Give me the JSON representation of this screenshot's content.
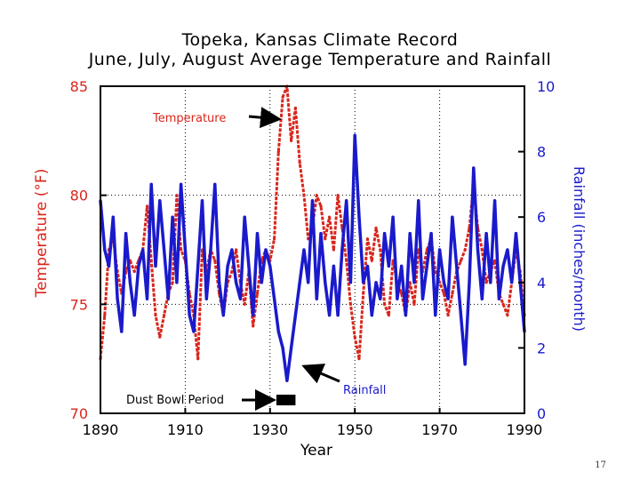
{
  "slide": {
    "number": "17"
  },
  "chart_data": {
    "type": "line",
    "title": "Topeka, Kansas Climate Record",
    "subtitle": "June, July, August Average Temperature and Rainfall",
    "xlabel": "Year",
    "ylabel_left": "Temperature (°F)",
    "ylabel_right": "Rainfall (inches/month)",
    "xlim": [
      1890,
      1990
    ],
    "ylim_left": [
      70,
      85
    ],
    "ylim_right": [
      0,
      10
    ],
    "x_ticks": [
      "1890",
      "1910",
      "1930",
      "1950",
      "1970",
      "1990"
    ],
    "y_ticks_left": [
      "70",
      "75",
      "80",
      "85"
    ],
    "y_ticks_right": [
      "0",
      "2",
      "4",
      "6",
      "8",
      "10"
    ],
    "grid": "vertical dotted lines at 1910, 1930, 1950, 1970 and horizontal dotted lines at 70, 75, 80, 85 °F",
    "colors": {
      "temperature": "#d9261c",
      "rainfall": "#1a1acc",
      "axes": "#000000"
    },
    "annotations": [
      {
        "text": "Temperature",
        "color": "#d9261c",
        "points_to": [
          1932,
          82.2
        ]
      },
      {
        "text": "Rainfall",
        "color": "#1a1acc",
        "points_to": [
          1934,
          1.5
        ]
      },
      {
        "text": "Dust Bowl Period",
        "color": "#000000",
        "span": [
          1930,
          1936
        ]
      }
    ],
    "series": [
      {
        "name": "Temperature",
        "axis": "left",
        "units": "°F",
        "x": [
          1890,
          1891,
          1892,
          1893,
          1894,
          1895,
          1896,
          1897,
          1898,
          1899,
          1900,
          1901,
          1902,
          1903,
          1904,
          1905,
          1906,
          1907,
          1908,
          1909,
          1910,
          1911,
          1912,
          1913,
          1914,
          1915,
          1916,
          1917,
          1918,
          1919,
          1920,
          1921,
          1922,
          1923,
          1924,
          1925,
          1926,
          1927,
          1928,
          1929,
          1930,
          1931,
          1932,
          1933,
          1934,
          1935,
          1936,
          1937,
          1938,
          1939,
          1940,
          1941,
          1942,
          1943,
          1944,
          1945,
          1946,
          1947,
          1948,
          1949,
          1950,
          1951,
          1952,
          1953,
          1954,
          1955,
          1956,
          1957,
          1958,
          1959,
          1960,
          1961,
          1962,
          1963,
          1964,
          1965,
          1966,
          1967,
          1968,
          1969,
          1970,
          1971,
          1972,
          1973,
          1974,
          1975,
          1976,
          1977,
          1978,
          1979,
          1980,
          1981,
          1982,
          1983,
          1984,
          1985,
          1986,
          1987,
          1988,
          1989,
          1990
        ],
        "values": [
          72.5,
          74.5,
          77.5,
          78.0,
          76.5,
          75.5,
          76.5,
          77.0,
          76.5,
          77.0,
          77.5,
          79.5,
          77.0,
          74.5,
          73.5,
          74.5,
          75.5,
          76.0,
          80.0,
          77.5,
          77.0,
          75.5,
          74.5,
          72.5,
          77.5,
          76.5,
          77.5,
          77.0,
          75.5,
          74.5,
          76.0,
          76.5,
          77.5,
          76.0,
          75.0,
          76.5,
          74.0,
          75.5,
          77.0,
          77.5,
          77.0,
          78.0,
          82.0,
          84.5,
          85.0,
          82.5,
          84.0,
          81.5,
          80.0,
          78.0,
          78.5,
          80.0,
          79.5,
          78.0,
          79.0,
          77.5,
          80.0,
          78.5,
          77.0,
          75.0,
          73.5,
          72.5,
          75.5,
          78.0,
          77.0,
          78.5,
          77.5,
          75.0,
          74.5,
          77.0,
          76.0,
          75.5,
          74.5,
          76.0,
          75.0,
          77.5,
          76.5,
          77.5,
          78.0,
          76.5,
          76.0,
          75.5,
          74.5,
          75.5,
          76.5,
          77.0,
          77.5,
          78.5,
          80.5,
          78.5,
          77.5,
          76.0,
          76.5,
          77.0,
          75.5,
          75.0,
          74.5,
          76.0,
          77.5,
          76.5,
          74.5
        ]
      },
      {
        "name": "Rainfall",
        "axis": "right",
        "units": "inches/month",
        "x": [
          1890,
          1891,
          1892,
          1893,
          1894,
          1895,
          1896,
          1897,
          1898,
          1899,
          1900,
          1901,
          1902,
          1903,
          1904,
          1905,
          1906,
          1907,
          1908,
          1909,
          1910,
          1911,
          1912,
          1913,
          1914,
          1915,
          1916,
          1917,
          1918,
          1919,
          1920,
          1921,
          1922,
          1923,
          1924,
          1925,
          1926,
          1927,
          1928,
          1929,
          1930,
          1931,
          1932,
          1933,
          1934,
          1935,
          1936,
          1937,
          1938,
          1939,
          1940,
          1941,
          1942,
          1943,
          1944,
          1945,
          1946,
          1947,
          1948,
          1949,
          1950,
          1951,
          1952,
          1953,
          1954,
          1955,
          1956,
          1957,
          1958,
          1959,
          1960,
          1961,
          1962,
          1963,
          1964,
          1965,
          1966,
          1967,
          1968,
          1969,
          1970,
          1971,
          1972,
          1973,
          1974,
          1975,
          1976,
          1977,
          1978,
          1979,
          1980,
          1981,
          1982,
          1983,
          1984,
          1985,
          1986,
          1987,
          1988,
          1989,
          1990
        ],
        "values": [
          6.5,
          5.0,
          4.5,
          6.0,
          3.5,
          2.5,
          5.5,
          4.0,
          3.0,
          4.5,
          5.0,
          3.5,
          7.0,
          4.5,
          6.5,
          5.0,
          3.5,
          6.0,
          4.0,
          7.0,
          5.0,
          3.0,
          2.5,
          4.5,
          6.5,
          3.5,
          5.0,
          7.0,
          4.0,
          3.0,
          4.5,
          5.0,
          4.0,
          3.5,
          6.0,
          4.5,
          3.0,
          5.5,
          4.0,
          5.0,
          4.5,
          3.5,
          2.5,
          2.0,
          1.0,
          2.0,
          3.0,
          4.0,
          5.0,
          4.0,
          6.5,
          3.5,
          5.5,
          4.0,
          3.0,
          4.5,
          3.0,
          5.0,
          6.5,
          4.0,
          8.5,
          6.0,
          4.0,
          4.5,
          3.0,
          4.0,
          3.5,
          5.5,
          4.5,
          6.0,
          3.5,
          4.5,
          3.0,
          5.5,
          4.0,
          6.5,
          3.5,
          4.5,
          5.5,
          3.0,
          5.0,
          4.0,
          3.5,
          6.0,
          4.5,
          3.0,
          1.5,
          4.0,
          7.5,
          5.0,
          3.5,
          5.5,
          4.0,
          6.5,
          3.5,
          4.5,
          5.0,
          4.0,
          5.5,
          4.0,
          2.5
        ]
      }
    ]
  }
}
